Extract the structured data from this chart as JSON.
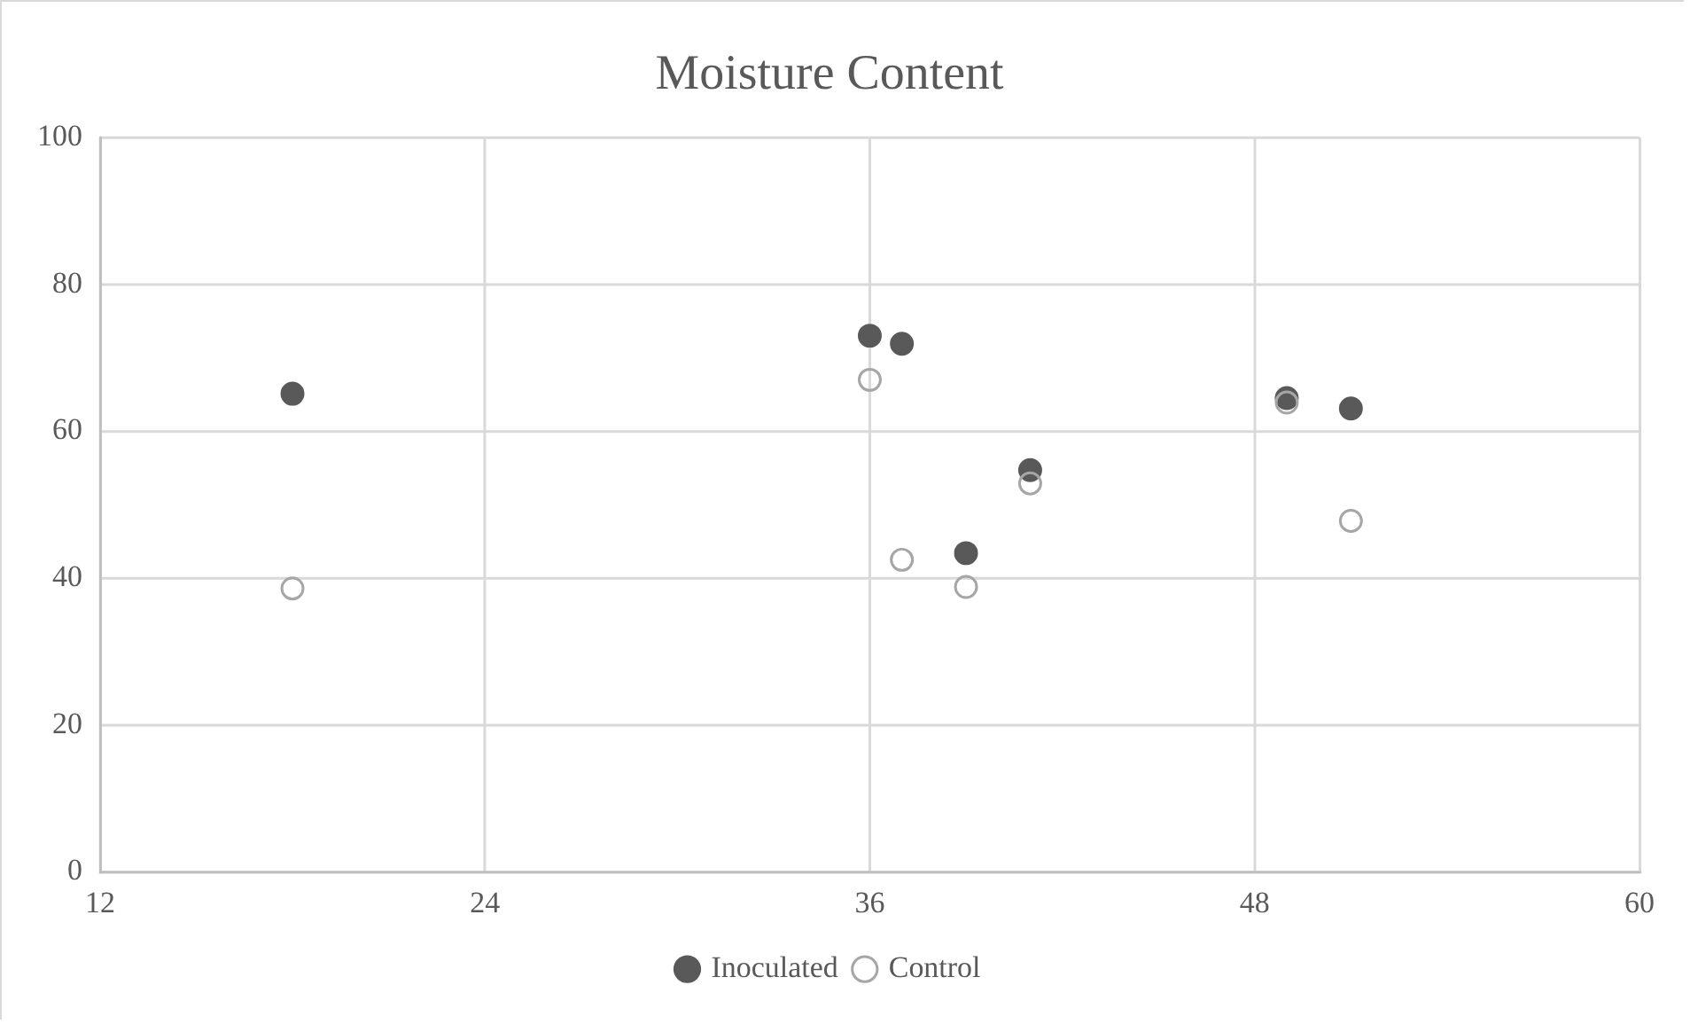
{
  "chart_data": {
    "type": "scatter",
    "title": "Moisture Content",
    "series": [
      {
        "name": "Inoculated",
        "color": "#595959",
        "x": [
          18,
          36,
          37,
          39,
          41,
          49,
          51
        ],
        "values": [
          65.1,
          73.0,
          71.9,
          43.4,
          54.7,
          64.5,
          63.1
        ]
      },
      {
        "name": "Control",
        "color": "#a6a6a6",
        "x": [
          18,
          36,
          37,
          39,
          41,
          49,
          51
        ],
        "values": [
          38.6,
          67.0,
          42.5,
          38.8,
          52.9,
          63.9,
          47.8
        ]
      }
    ],
    "xlim": [
      12,
      60
    ],
    "xticks": [
      12,
      24,
      36,
      48,
      60
    ],
    "ylim": [
      0,
      100
    ],
    "yticks": [
      0,
      20,
      40,
      60,
      80,
      100
    ],
    "grid": true,
    "legend": "bottom",
    "marker": "circle"
  }
}
